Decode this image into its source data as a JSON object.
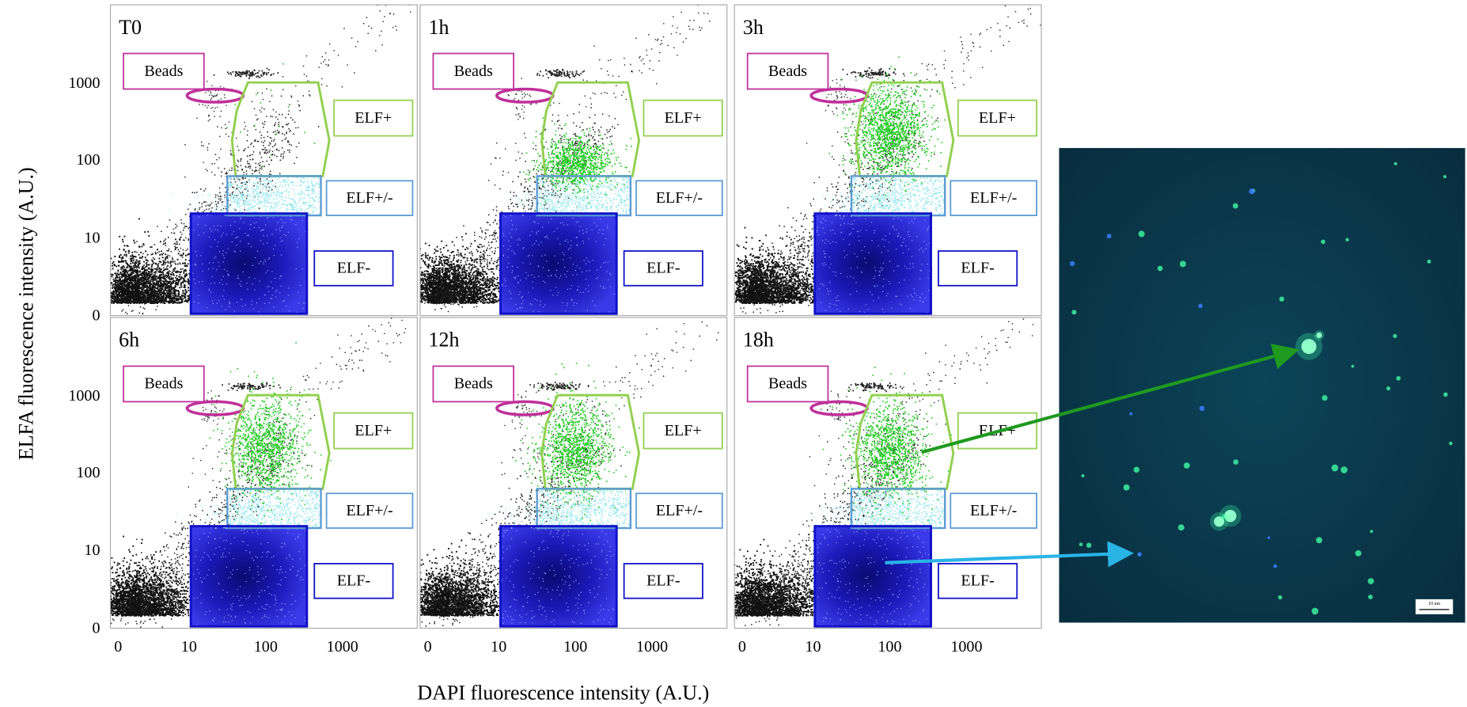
{
  "figure": {
    "y_axis_label": "ELFA fluorescence intensity (A.U.)",
    "x_axis_label": "DAPI fluorescence intensity (A.U.)",
    "y_tick_labels": [
      "1000",
      "100",
      "10",
      "0"
    ],
    "x_tick_labels": [
      "0",
      "10",
      "100",
      "1000"
    ],
    "gate_labels": {
      "beads": "Beads",
      "elf_pos": "ELF+",
      "elf_mid": "ELF+/-",
      "elf_neg": "ELF-"
    },
    "panels": [
      "T0",
      "1h",
      "3h",
      "6h",
      "12h",
      "18h"
    ],
    "scale_bar": "10 um"
  }
}
